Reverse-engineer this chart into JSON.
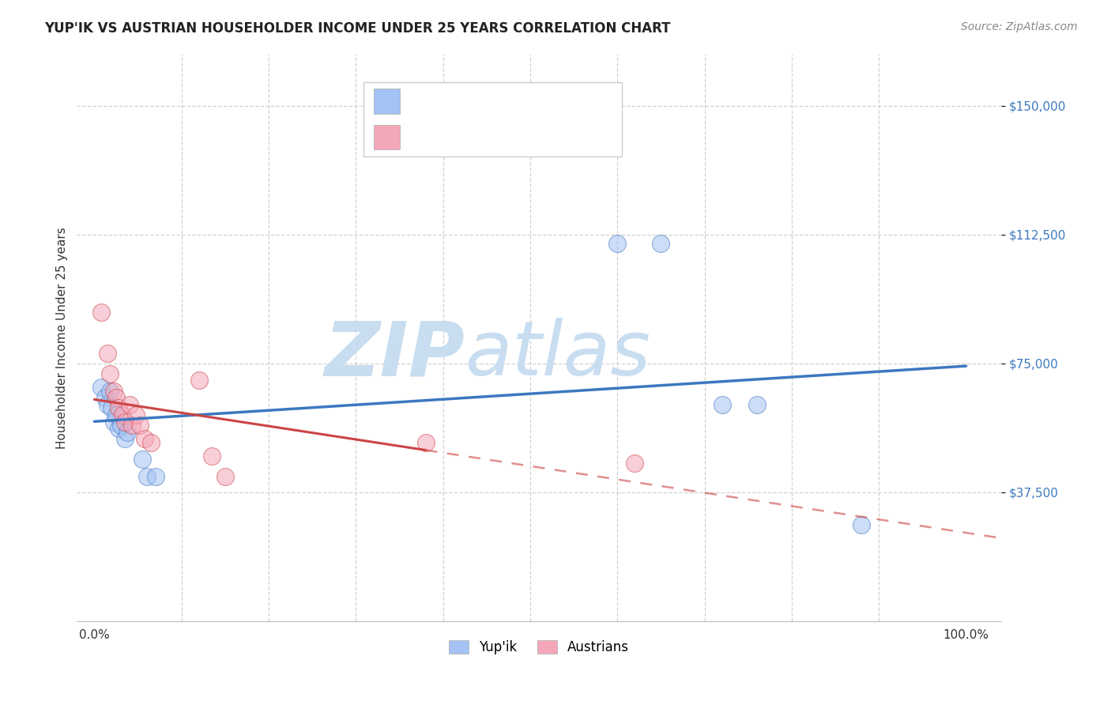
{
  "title": "YUP'IK VS AUSTRIAN HOUSEHOLDER INCOME UNDER 25 YEARS CORRELATION CHART",
  "source": "Source: ZipAtlas.com",
  "ylabel": "Householder Income Under 25 years",
  "ytick_values": [
    37500,
    75000,
    112500,
    150000
  ],
  "ymin": 0,
  "ymax": 165000,
  "xmin": 0.0,
  "xmax": 1.0,
  "yupik_color": "#a4c2f4",
  "austrian_color": "#f4a7b9",
  "yupik_line_color": "#3d78c0",
  "austrian_line_color": "#cc4444",
  "legend_text_color": "#3d78c0",
  "legend_r_color": "#222222",
  "yupik_scatter": [
    [
      0.008,
      68000
    ],
    [
      0.012,
      65000
    ],
    [
      0.015,
      63000
    ],
    [
      0.018,
      67000
    ],
    [
      0.02,
      62000
    ],
    [
      0.022,
      58000
    ],
    [
      0.025,
      60000
    ],
    [
      0.028,
      56000
    ],
    [
      0.03,
      57000
    ],
    [
      0.035,
      53000
    ],
    [
      0.038,
      55000
    ],
    [
      0.055,
      47000
    ],
    [
      0.06,
      42000
    ],
    [
      0.07,
      42000
    ],
    [
      0.6,
      110000
    ],
    [
      0.65,
      110000
    ],
    [
      0.72,
      63000
    ],
    [
      0.76,
      63000
    ],
    [
      0.88,
      28000
    ]
  ],
  "austrian_scatter": [
    [
      0.008,
      90000
    ],
    [
      0.015,
      78000
    ],
    [
      0.018,
      72000
    ],
    [
      0.022,
      67000
    ],
    [
      0.025,
      65000
    ],
    [
      0.028,
      62000
    ],
    [
      0.032,
      60000
    ],
    [
      0.035,
      58000
    ],
    [
      0.04,
      63000
    ],
    [
      0.043,
      57000
    ],
    [
      0.048,
      60000
    ],
    [
      0.052,
      57000
    ],
    [
      0.058,
      53000
    ],
    [
      0.065,
      52000
    ],
    [
      0.12,
      70000
    ],
    [
      0.135,
      48000
    ],
    [
      0.15,
      42000
    ],
    [
      0.38,
      52000
    ],
    [
      0.62,
      46000
    ]
  ],
  "background_color": "#ffffff",
  "grid_color": "#cccccc",
  "watermark_zip": "ZIP",
  "watermark_atlas": "atlas",
  "watermark_color_zip": "#c8ddf0",
  "watermark_color_atlas": "#c8ddf0"
}
